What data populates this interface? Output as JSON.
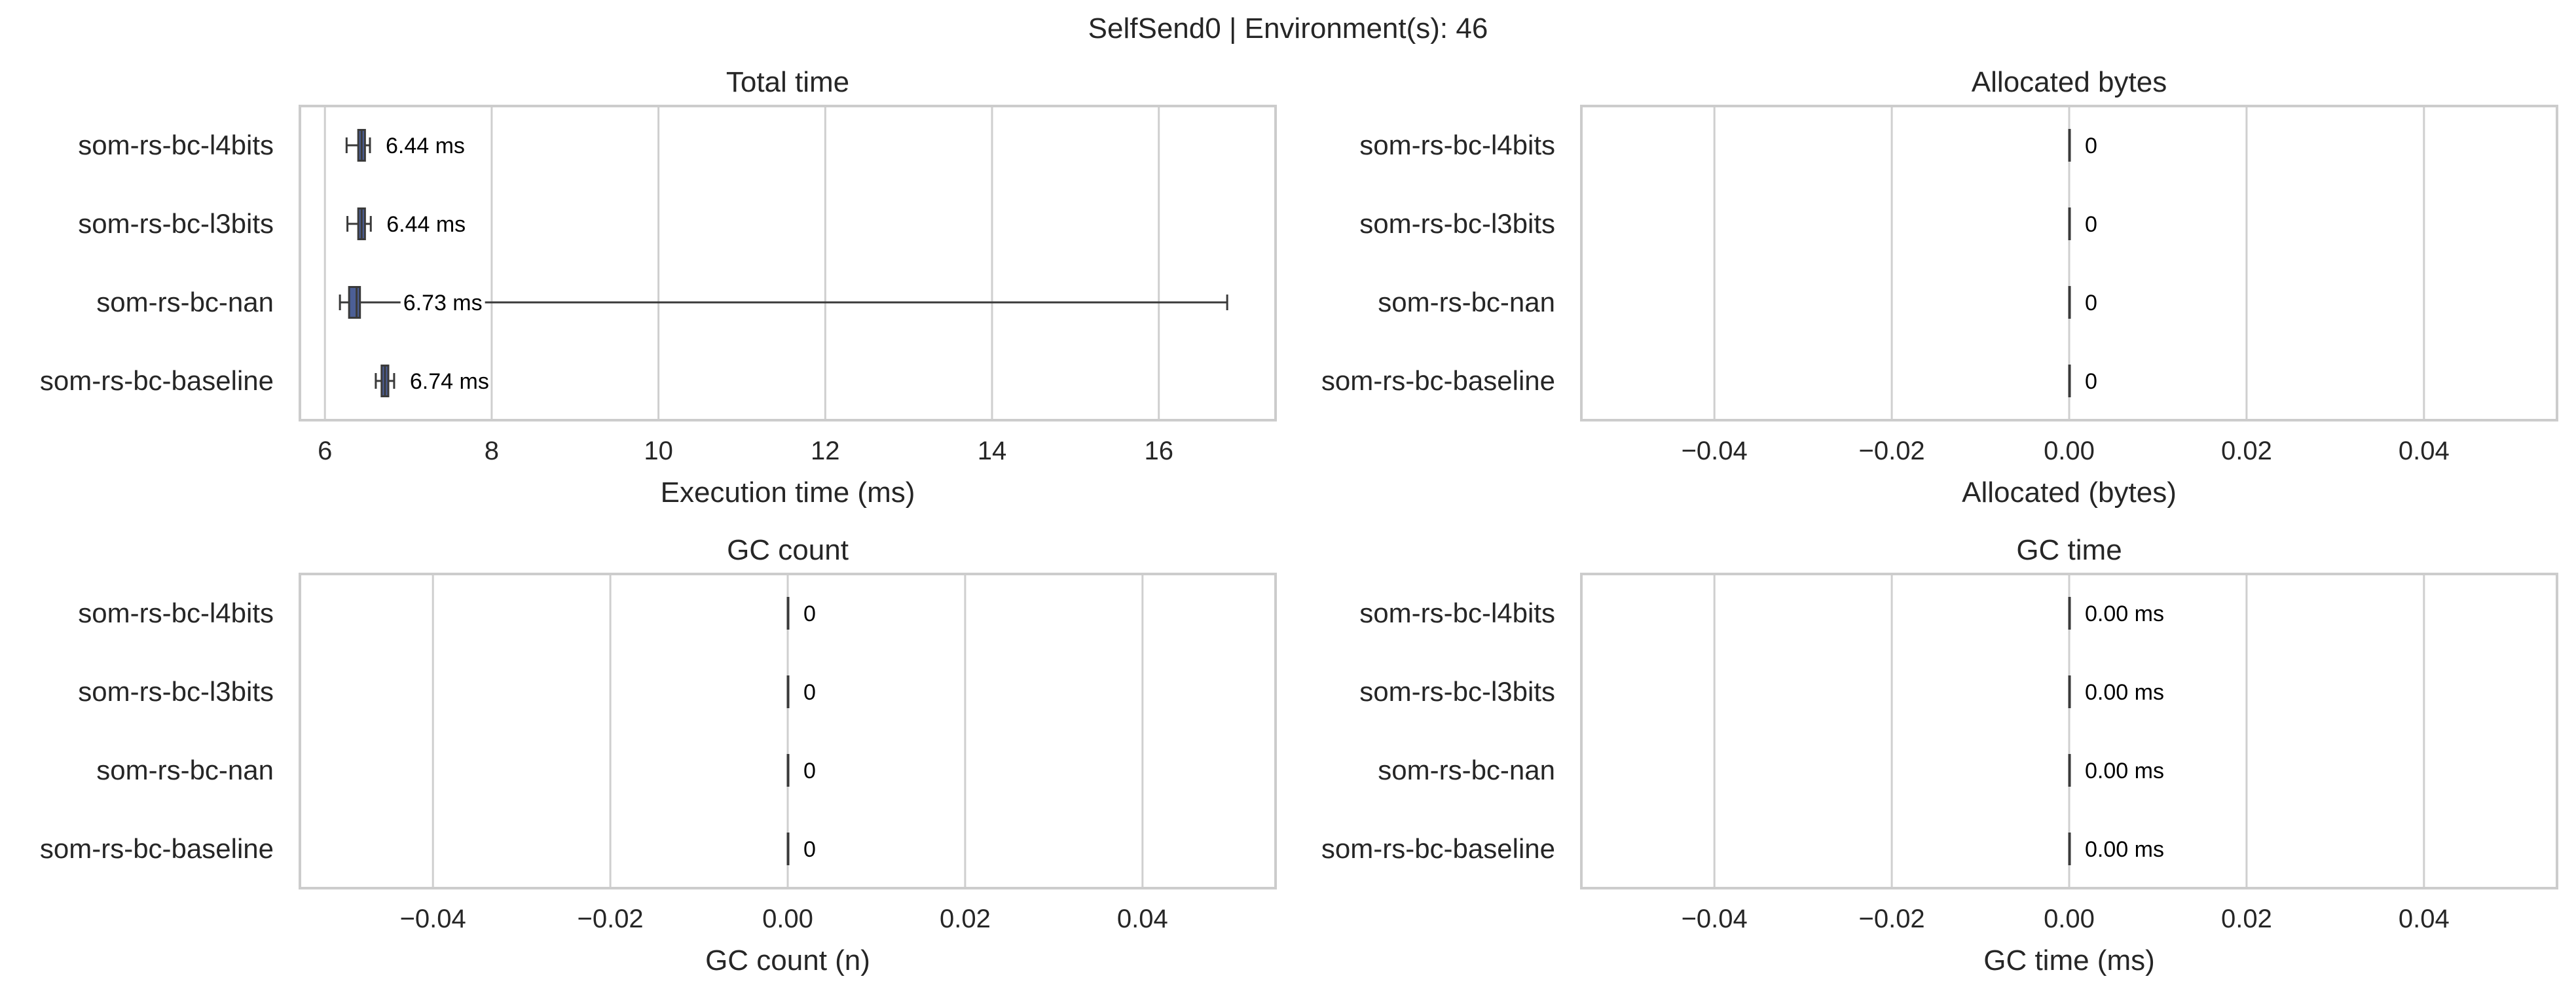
{
  "title": "SelfSend0 | Environment(s): 46",
  "colors": {
    "box": "#4c5f96",
    "whisker": "#3a3a3a",
    "grid": "#cfcfcf",
    "frame": "#cccccc",
    "text": "#262626",
    "label": "#000000"
  },
  "chart_data": [
    {
      "type": "box",
      "title": "Total time",
      "xlabel": "Execution time (ms)",
      "ylabel": "",
      "orientation": "horizontal",
      "categories": [
        "som-rs-bc-l4bits",
        "som-rs-bc-l3bits",
        "som-rs-bc-nan",
        "som-rs-bc-baseline"
      ],
      "xlim": [
        5.7,
        17.4
      ],
      "xticks": [
        6,
        8,
        10,
        12,
        14,
        16
      ],
      "xtick_labels": [
        "6",
        "8",
        "10",
        "12",
        "14",
        "16"
      ],
      "grid": true,
      "boxes": [
        {
          "whislo": 6.26,
          "q1": 6.4,
          "med": 6.44,
          "q3": 6.48,
          "whishi": 6.54,
          "label": "6.44 ms"
        },
        {
          "whislo": 6.27,
          "q1": 6.4,
          "med": 6.44,
          "q3": 6.48,
          "whishi": 6.55,
          "label": "6.44 ms"
        },
        {
          "whislo": 6.18,
          "q1": 6.29,
          "med": 6.38,
          "q3": 6.42,
          "whishi": 16.82,
          "label": "6.73 ms"
        },
        {
          "whislo": 6.61,
          "q1": 6.68,
          "med": 6.72,
          "q3": 6.76,
          "whishi": 6.83,
          "label": "6.74 ms"
        }
      ]
    },
    {
      "type": "box",
      "title": "Allocated bytes",
      "xlabel": "Allocated (bytes)",
      "ylabel": "",
      "orientation": "horizontal",
      "categories": [
        "som-rs-bc-l4bits",
        "som-rs-bc-l3bits",
        "som-rs-bc-nan",
        "som-rs-bc-baseline"
      ],
      "xlim": [
        -0.055,
        0.055
      ],
      "xticks": [
        -0.04,
        -0.02,
        0.0,
        0.02,
        0.04
      ],
      "xtick_labels": [
        "−0.04",
        "−0.02",
        "0.00",
        "0.02",
        "0.04"
      ],
      "grid": true,
      "boxes": [
        {
          "whislo": 0,
          "q1": 0,
          "med": 0,
          "q3": 0,
          "whishi": 0,
          "label": "0"
        },
        {
          "whislo": 0,
          "q1": 0,
          "med": 0,
          "q3": 0,
          "whishi": 0,
          "label": "0"
        },
        {
          "whislo": 0,
          "q1": 0,
          "med": 0,
          "q3": 0,
          "whishi": 0,
          "label": "0"
        },
        {
          "whislo": 0,
          "q1": 0,
          "med": 0,
          "q3": 0,
          "whishi": 0,
          "label": "0"
        }
      ]
    },
    {
      "type": "box",
      "title": "GC count",
      "xlabel": "GC count (n)",
      "ylabel": "",
      "orientation": "horizontal",
      "categories": [
        "som-rs-bc-l4bits",
        "som-rs-bc-l3bits",
        "som-rs-bc-nan",
        "som-rs-bc-baseline"
      ],
      "xlim": [
        -0.055,
        0.055
      ],
      "xticks": [
        -0.04,
        -0.02,
        0.0,
        0.02,
        0.04
      ],
      "xtick_labels": [
        "−0.04",
        "−0.02",
        "0.00",
        "0.02",
        "0.04"
      ],
      "grid": true,
      "boxes": [
        {
          "whislo": 0,
          "q1": 0,
          "med": 0,
          "q3": 0,
          "whishi": 0,
          "label": "0"
        },
        {
          "whislo": 0,
          "q1": 0,
          "med": 0,
          "q3": 0,
          "whishi": 0,
          "label": "0"
        },
        {
          "whislo": 0,
          "q1": 0,
          "med": 0,
          "q3": 0,
          "whishi": 0,
          "label": "0"
        },
        {
          "whislo": 0,
          "q1": 0,
          "med": 0,
          "q3": 0,
          "whishi": 0,
          "label": "0"
        }
      ]
    },
    {
      "type": "box",
      "title": "GC time",
      "xlabel": "GC time (ms)",
      "ylabel": "",
      "orientation": "horizontal",
      "categories": [
        "som-rs-bc-l4bits",
        "som-rs-bc-l3bits",
        "som-rs-bc-nan",
        "som-rs-bc-baseline"
      ],
      "xlim": [
        -0.055,
        0.055
      ],
      "xticks": [
        -0.04,
        -0.02,
        0.0,
        0.02,
        0.04
      ],
      "xtick_labels": [
        "−0.04",
        "−0.02",
        "0.00",
        "0.02",
        "0.04"
      ],
      "grid": true,
      "boxes": [
        {
          "whislo": 0,
          "q1": 0,
          "med": 0,
          "q3": 0,
          "whishi": 0,
          "label": "0.00 ms"
        },
        {
          "whislo": 0,
          "q1": 0,
          "med": 0,
          "q3": 0,
          "whishi": 0,
          "label": "0.00 ms"
        },
        {
          "whislo": 0,
          "q1": 0,
          "med": 0,
          "q3": 0,
          "whishi": 0,
          "label": "0.00 ms"
        },
        {
          "whislo": 0,
          "q1": 0,
          "med": 0,
          "q3": 0,
          "whishi": 0,
          "label": "0.00 ms"
        }
      ]
    }
  ]
}
